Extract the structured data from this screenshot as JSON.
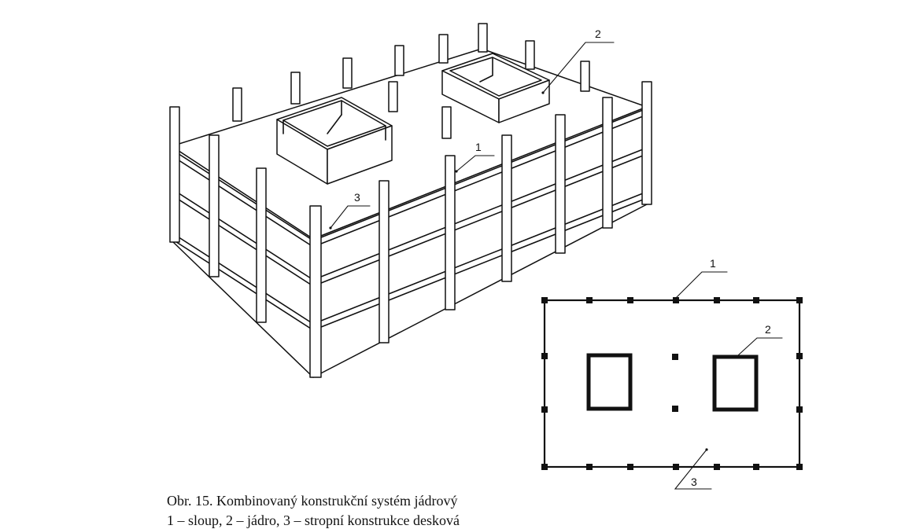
{
  "callouts": {
    "iso_column": "1",
    "iso_core": "2",
    "iso_slab": "3",
    "plan_column": "1",
    "plan_core": "2",
    "plan_slab": "3"
  },
  "caption": {
    "line1": "Obr. 15.  Kombinovaný konstrukční systém jádrový",
    "line2": "1 – sloup, 2 – jádro, 3 – stropní konstrukce desková"
  },
  "legend": [
    {
      "number": "1",
      "term": "sloup"
    },
    {
      "number": "2",
      "term": "jádro"
    },
    {
      "number": "3",
      "term": "stropní konstrukce desková"
    }
  ],
  "colors": {
    "ink": "#111111",
    "paper": "#ffffff"
  }
}
